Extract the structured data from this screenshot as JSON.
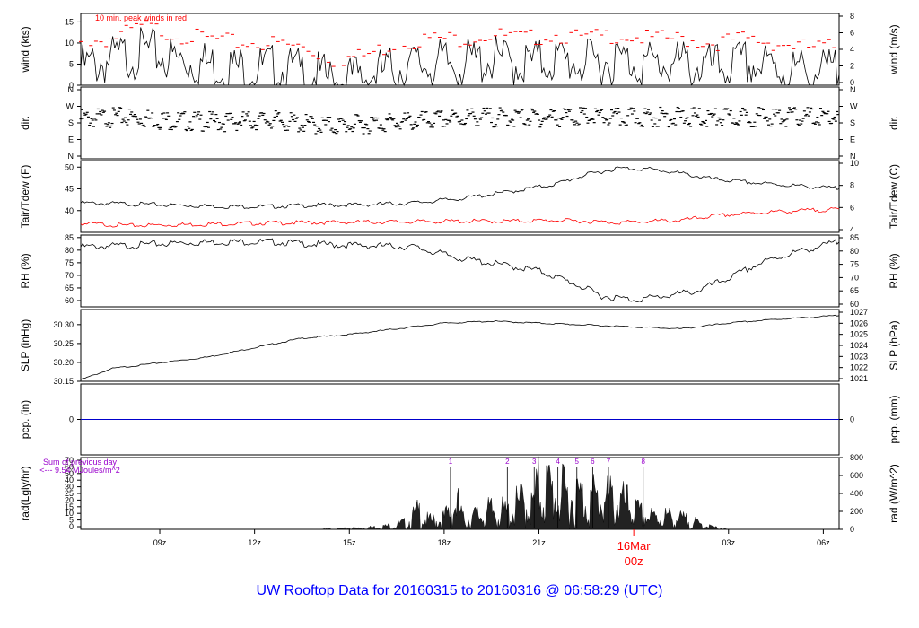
{
  "title": "UW Rooftop Data for 20160315  to  20160316 @ 06:58:29  (UTC)",
  "colors": {
    "trace": "#000000",
    "accent": "#ff0000",
    "pcp_line": "#0000cc",
    "note": "#9900cc",
    "title": "#0000ff"
  },
  "chart_data": [
    {
      "type": "line",
      "panel": "wind",
      "left_label": "wind (kts)",
      "right_label": "wind (m/s)",
      "left_ticks": [
        "0",
        "5",
        "10",
        "15"
      ],
      "left_tick_values": [
        0,
        5,
        10,
        15
      ],
      "right_ticks": [
        "0",
        "2",
        "4",
        "6",
        "8"
      ],
      "ylim": [
        0,
        17
      ],
      "annotation": "10 min. peak winds in red",
      "x_hours": [
        6.5,
        7.5,
        8.5,
        9.5,
        10.5,
        11.5,
        12.5,
        13.5,
        14.5,
        15.5,
        16.5,
        17.5,
        18.5,
        19.5,
        20.5,
        21.5,
        22.5,
        23.5,
        24.5,
        25.5,
        26.5,
        27.5,
        28.5,
        29.5,
        30.5
      ],
      "series": [
        {
          "values": [
            7,
            9,
            11,
            9,
            8,
            7,
            7,
            6,
            4,
            5,
            7,
            8,
            8,
            9,
            8,
            9,
            8,
            9,
            8,
            8,
            7,
            8,
            7,
            6,
            6
          ]
        },
        {
          "values": [
            11,
            12,
            15,
            13,
            12,
            11,
            11,
            10,
            7,
            8,
            11,
            12,
            12,
            13,
            12,
            13,
            12,
            13,
            12,
            12,
            11,
            12,
            11,
            10,
            10
          ]
        }
      ]
    },
    {
      "type": "scatter",
      "panel": "dir.",
      "left_label": "dir.",
      "right_label": "dir.",
      "left_ticks": [
        "N",
        "E",
        "S",
        "W",
        "N"
      ],
      "right_ticks": [
        "N",
        "E",
        "S",
        "W",
        "N"
      ],
      "ylim": [
        0,
        360
      ],
      "x_hours": [
        6.5,
        8,
        9.5,
        11,
        12.5,
        13.5,
        14.5,
        16,
        17.5,
        19,
        20.5,
        22,
        23.5,
        25,
        26.5,
        28,
        29.5,
        30.5
      ],
      "values": [
        225,
        235,
        215,
        210,
        220,
        200,
        190,
        205,
        215,
        235,
        230,
        235,
        230,
        235,
        230,
        235,
        235,
        235
      ]
    },
    {
      "type": "line",
      "panel": "Tair/Tdew",
      "left_label": "Tair/Tdew (F)",
      "right_label": "Tair/Tdew (C)",
      "left_ticks": [
        "40",
        "45",
        "50"
      ],
      "left_tick_values": [
        40,
        45,
        50
      ],
      "right_ticks": [
        "4",
        "6",
        "8",
        "10"
      ],
      "ylim": [
        35,
        51.5
      ],
      "x_hours": [
        6.5,
        8,
        9.5,
        11,
        12.5,
        14,
        15.5,
        17,
        18.5,
        20,
        21.5,
        22.5,
        23.5,
        24.5,
        25.5,
        26.5,
        28,
        29.5,
        30.5
      ],
      "series": [
        {
          "values": [
            42,
            41.8,
            41.5,
            41.2,
            41.2,
            41.5,
            41.6,
            42.0,
            43.0,
            44.5,
            46.3,
            48.5,
            50.0,
            49.8,
            48.8,
            47.5,
            46.5,
            45.8,
            45.3
          ]
        },
        {
          "values": [
            37.3,
            36.8,
            37.0,
            37.2,
            37.4,
            37.5,
            37.6,
            37.7,
            37.8,
            37.8,
            38.0,
            37.8,
            37.5,
            37.8,
            38.0,
            39.0,
            39.8,
            40.3,
            40.5
          ]
        }
      ]
    },
    {
      "type": "line",
      "panel": "RH",
      "left_label": "RH (%)",
      "right_label": "RH (%)",
      "left_ticks": [
        "60",
        "65",
        "70",
        "75",
        "80",
        "85"
      ],
      "left_tick_values": [
        60,
        65,
        70,
        75,
        80,
        85
      ],
      "right_ticks": [
        "60",
        "65",
        "70",
        "75",
        "80",
        "85"
      ],
      "ylim": [
        57.5,
        86
      ],
      "x_hours": [
        6.5,
        8,
        9.5,
        11,
        12.5,
        14,
        15.5,
        17,
        18.5,
        20,
        21,
        22,
        23,
        24,
        25,
        26,
        27,
        28,
        29,
        30.5
      ],
      "values": [
        82,
        82.5,
        83.5,
        84.0,
        84.0,
        83.0,
        82.5,
        82.0,
        77.5,
        74.5,
        72.5,
        68.0,
        62.5,
        61.0,
        62.5,
        64.5,
        69.5,
        75.5,
        79.5,
        84.0
      ]
    },
    {
      "type": "line",
      "panel": "SLP",
      "left_label": "SLP (inHg)",
      "right_label": "SLP (hPa)",
      "left_ticks": [
        "30.15",
        "30.20",
        "30.25",
        "30.30"
      ],
      "left_tick_values": [
        30.15,
        30.2,
        30.25,
        30.3
      ],
      "right_ticks": [
        "1021",
        "1022",
        "1023",
        "1024",
        "1025",
        "1026",
        "1027"
      ],
      "ylim": [
        30.15,
        30.34
      ],
      "x_hours": [
        6.5,
        7.5,
        9,
        10.5,
        12,
        13.5,
        15,
        16.5,
        18,
        19.5,
        21,
        22.5,
        24,
        25.5,
        27,
        28.5,
        30.5
      ],
      "values": [
        30.155,
        30.185,
        30.2,
        30.215,
        30.24,
        30.265,
        30.275,
        30.29,
        30.305,
        30.31,
        30.305,
        30.3,
        30.295,
        30.29,
        30.305,
        30.315,
        30.325
      ]
    },
    {
      "type": "line",
      "panel": "pcp.",
      "left_label": "pcp. (in)",
      "right_label": "pcp. (mm)",
      "left_ticks": [
        "0"
      ],
      "right_ticks": [
        "0"
      ],
      "ylim": [
        -1,
        1
      ],
      "x_hours": [
        6.5,
        30.5
      ],
      "values": [
        0,
        0
      ]
    },
    {
      "type": "area",
      "panel": "rad",
      "left_label": "rad(Lgly/hr)",
      "right_label": "rad (W/m^2)",
      "left_ticks": [
        "0",
        "5",
        "10",
        "15",
        "20",
        "25",
        "30",
        "40",
        "50",
        "60",
        "70"
      ],
      "left_tick_values": [
        0,
        5,
        10,
        15,
        20,
        25,
        30,
        40,
        50,
        60,
        70
      ],
      "right_ticks": [
        "0",
        "200",
        "400",
        "600",
        "800"
      ],
      "right_tick_values": [
        0,
        200,
        400,
        600,
        800
      ],
      "ylim": [
        0,
        800
      ],
      "note_lines": [
        "Sum of previous day",
        "<--- 9.54 MJoules/m^2"
      ],
      "markers": [
        "1",
        "2",
        "3",
        "4",
        "5",
        "6",
        "7",
        "8"
      ],
      "marker_hours": [
        18.2,
        20.0,
        20.85,
        21.6,
        22.2,
        22.7,
        23.2,
        24.3
      ],
      "x_hours": [
        13.7,
        14.5,
        15.5,
        16.2,
        16.8,
        17.2,
        17.5,
        18.0,
        18.4,
        18.6,
        19.0,
        19.6,
        20.0,
        20.5,
        20.8,
        21.0,
        21.2,
        21.6,
        22.0,
        22.3,
        22.6,
        23.0,
        23.4,
        23.8,
        24.2,
        24.6,
        25.0,
        25.4,
        25.8,
        26.2,
        26.6,
        27.0
      ],
      "values": [
        0,
        10,
        30,
        60,
        120,
        320,
        150,
        200,
        500,
        180,
        250,
        350,
        300,
        520,
        400,
        800,
        780,
        650,
        620,
        600,
        580,
        560,
        540,
        450,
        280,
        220,
        240,
        200,
        150,
        80,
        30,
        0
      ]
    }
  ],
  "x_axis": {
    "tick_labels": [
      "09z",
      "12z",
      "15z",
      "18z",
      "21z",
      "03z",
      "06z"
    ],
    "tick_hours": [
      9,
      12,
      15,
      18,
      21,
      27,
      30
    ],
    "date_label": "16Mar",
    "date_sub": "00z",
    "date_hour": 24,
    "range": [
      6.5,
      30.5
    ]
  }
}
